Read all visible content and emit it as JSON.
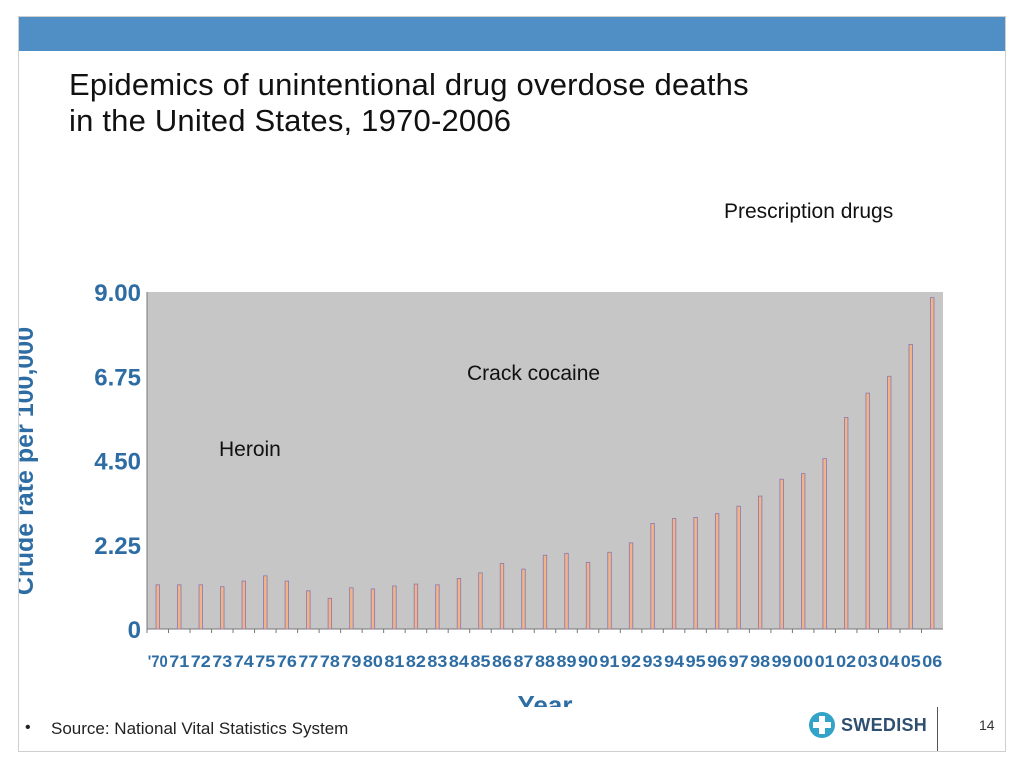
{
  "slide": {
    "title_line1": "Epidemics of unintentional drug overdose deaths",
    "title_line2": "in the United States, 1970-2006",
    "annotations": {
      "prescription": "Prescription drugs",
      "crack": "Crack cocaine",
      "heroin": "Heroin"
    },
    "source_bullet": "•",
    "source": "Source: National Vital Statistics System",
    "logo_text": "SWEDISH",
    "page_number": "14",
    "colors": {
      "band": "#4f8fc6",
      "plot_bg": "#c6c6c6",
      "bar_fill": "#f2b486",
      "bar_edge": "#8a76b0",
      "axis_label": "#2e6da4"
    }
  },
  "chart_data": {
    "type": "bar",
    "title": "",
    "xlabel": "Year",
    "ylabel": "Crude rate per 100,000",
    "ylim": [
      0,
      9
    ],
    "yticks": [
      "0",
      "2.25",
      "4.50",
      "6.75",
      "9.00"
    ],
    "ytick_values": [
      0,
      2.25,
      4.5,
      6.75,
      9
    ],
    "grid": false,
    "categories": [
      "'70",
      "71",
      "72",
      "73",
      "74",
      "75",
      "76",
      "77",
      "78",
      "79",
      "80",
      "81",
      "82",
      "83",
      "84",
      "85",
      "86",
      "87",
      "88",
      "89",
      "90",
      "91",
      "92",
      "93",
      "94",
      "95",
      "96",
      "97",
      "98",
      "99",
      "00",
      "01",
      "02",
      "03",
      "04",
      "05",
      "06"
    ],
    "values": [
      1.18,
      1.18,
      1.18,
      1.13,
      1.28,
      1.42,
      1.28,
      1.02,
      0.82,
      1.1,
      1.07,
      1.15,
      1.2,
      1.18,
      1.35,
      1.5,
      1.75,
      1.6,
      1.97,
      2.02,
      1.78,
      2.05,
      2.3,
      2.82,
      2.95,
      2.98,
      3.08,
      3.28,
      3.55,
      4.0,
      4.15,
      4.55,
      5.65,
      6.3,
      6.75,
      7.6,
      8.85
    ],
    "series_name": "Crude rate per 100,000"
  }
}
